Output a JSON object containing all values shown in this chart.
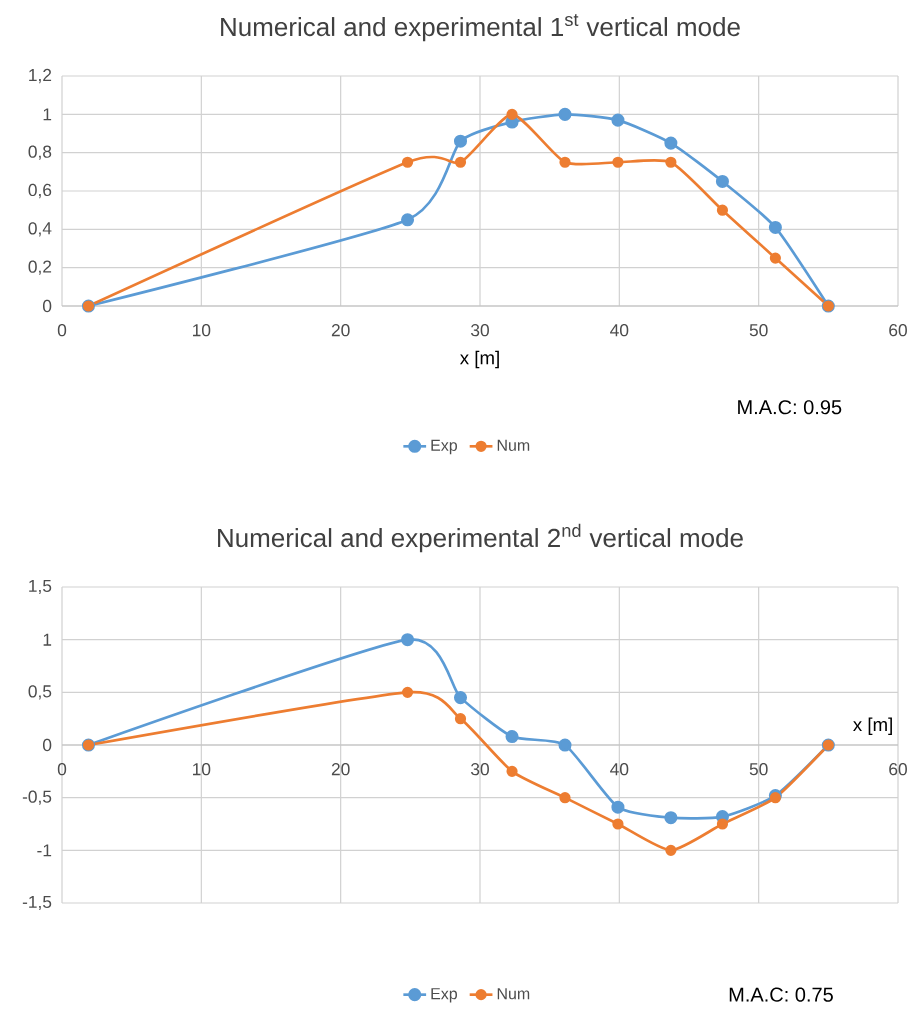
{
  "chart_data": [
    {
      "type": "line",
      "title": "Numerical and experimental 1$^{st}$  vertical mode",
      "xlabel": "x [m]",
      "x": [
        1.9,
        24.8,
        28.6,
        32.3,
        36.1,
        39.9,
        43.7,
        47.4,
        51.2,
        55
      ],
      "series": [
        {
          "name": "Exp",
          "color": "#5b9bd5",
          "values": [
            0,
            0.45,
            0.86,
            0.96,
            1,
            0.97,
            0.85,
            0.65,
            0.41,
            0
          ]
        },
        {
          "name": "Num",
          "color": "#ed7d31",
          "values": [
            0,
            0.75,
            0.75,
            1,
            0.75,
            0.75,
            0.75,
            0.5,
            0.25,
            0
          ]
        }
      ],
      "xlim": [
        0,
        60
      ],
      "xticks": [
        0,
        10,
        20,
        30,
        40,
        50,
        60
      ],
      "ylim": [
        0,
        1.2
      ],
      "yticks": [
        0,
        {
          "value": 0.2,
          "label": "0,2"
        },
        {
          "value": 0.4,
          "label": "0,4"
        },
        {
          "value": 0.6,
          "label": "0,6"
        },
        {
          "value": 0.8,
          "label": "0,8"
        },
        1,
        {
          "value": 1.2,
          "label": "1,2"
        }
      ],
      "grid": true,
      "legend": "bottom",
      "marker": "circle",
      "line_style": "solid",
      "annotations": [
        "M.A.C: 0.95"
      ]
    },
    {
      "type": "line",
      "title": "Numerical and experimental 2$^{nd}$ vertical mode",
      "xlabel": "x [m]",
      "x": [
        1.9,
        24.8,
        28.6,
        32.3,
        36.1,
        39.9,
        43.7,
        47.4,
        51.2,
        55
      ],
      "series": [
        {
          "name": "Exp",
          "color": "#5b9bd5",
          "values": [
            0,
            1,
            0.45,
            0.08,
            0,
            -0.59,
            -0.69,
            -0.68,
            -0.48,
            0
          ]
        },
        {
          "name": "Num",
          "color": "#ed7d31",
          "values": [
            0,
            0.5,
            0.25,
            -0.25,
            -0.5,
            -0.75,
            -1,
            -0.75,
            -0.5,
            0
          ]
        }
      ],
      "xlim": [
        0,
        60
      ],
      "xticks": [
        0,
        10,
        20,
        30,
        40,
        50,
        60
      ],
      "ylim": [
        -1.5,
        1.5
      ],
      "yticks": [
        {
          "value": -1.5,
          "label": "-1,5"
        },
        -1,
        {
          "value": -0.5,
          "label": "-0,5"
        },
        0,
        {
          "value": 0.5,
          "label": "0,5"
        },
        1,
        {
          "value": 1.5,
          "label": "1,5"
        }
      ],
      "grid": true,
      "legend": "bottom",
      "marker": "circle",
      "line_style": "solid",
      "annotations": [
        "M.A.C: 0.75"
      ]
    }
  ]
}
